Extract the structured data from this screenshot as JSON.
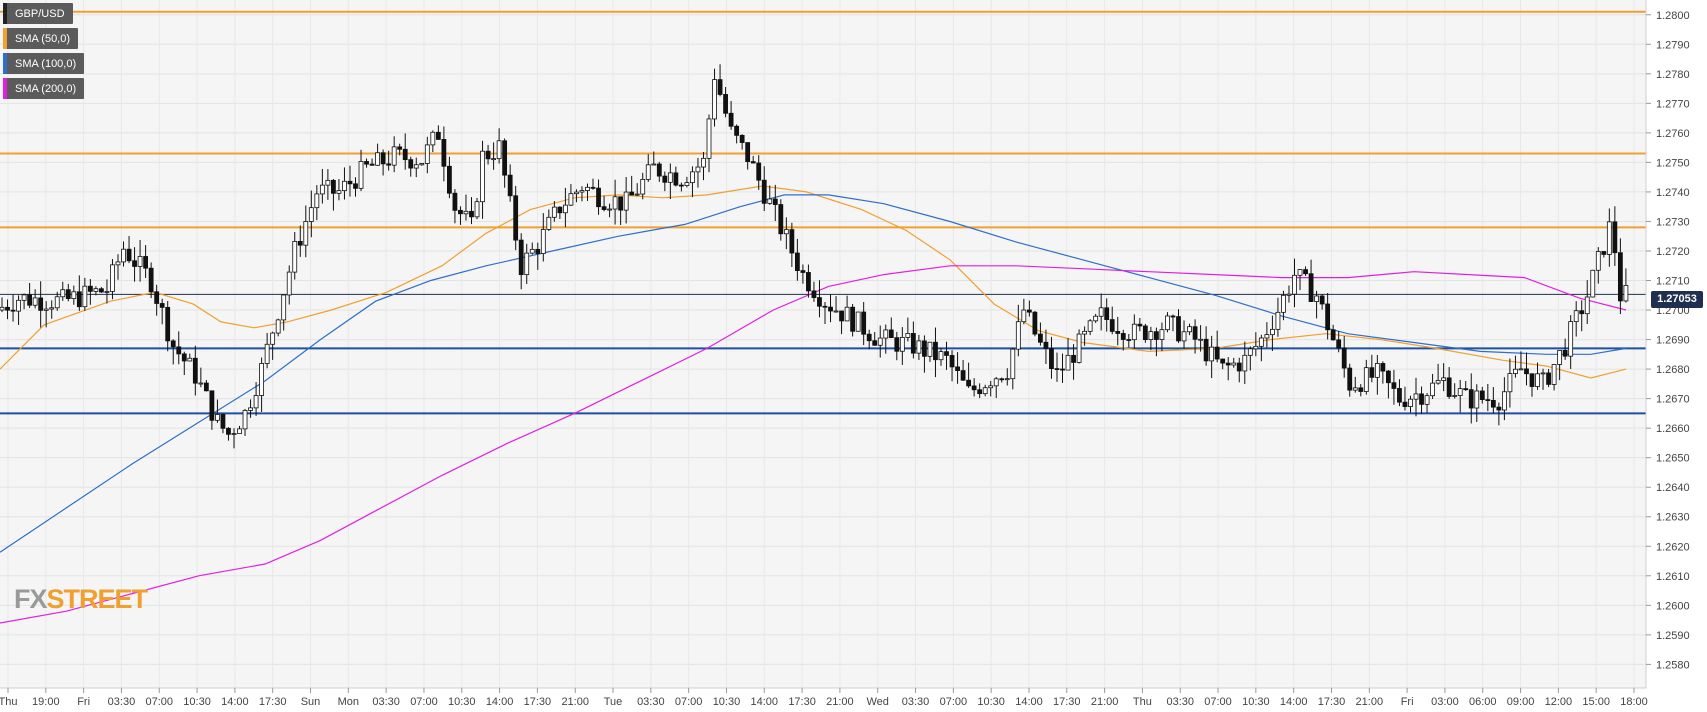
{
  "legend": [
    {
      "label": "GBP/USD",
      "color": "#222222"
    },
    {
      "label": "SMA (50,0)",
      "color": "#f0a030"
    },
    {
      "label": "SMA (100,0)",
      "color": "#2d6fc9"
    },
    {
      "label": "SMA (200,0)",
      "color": "#e020e0"
    }
  ],
  "logo": {
    "part1": "FX",
    "part2": "STREET"
  },
  "last_price": "1.27053",
  "chart_data": {
    "type": "candlestick",
    "symbol": "GBP/USD",
    "ylim": [
      1.2572,
      1.2805
    ],
    "y_ticks": [
      "1.2580",
      "1.2590",
      "1.2600",
      "1.2610",
      "1.2620",
      "1.2630",
      "1.2640",
      "1.2650",
      "1.2660",
      "1.2670",
      "1.2680",
      "1.2690",
      "1.2700",
      "1.2710",
      "1.2720",
      "1.2730",
      "1.2740",
      "1.2750",
      "1.2760",
      "1.2770",
      "1.2780",
      "1.2790",
      "1.2800"
    ],
    "x_ticks": [
      "Thu",
      "19:00",
      "Fri",
      "03:30",
      "07:00",
      "10:30",
      "14:00",
      "17:30",
      "Sun",
      "Mon",
      "03:30",
      "07:00",
      "10:30",
      "14:00",
      "17:30",
      "21:00",
      "Tue",
      "03:30",
      "07:00",
      "10:30",
      "14:00",
      "17:30",
      "21:00",
      "Wed",
      "03:30",
      "07:00",
      "10:30",
      "14:00",
      "17:30",
      "21:00",
      "Thu",
      "03:30",
      "07:00",
      "10:30",
      "14:00",
      "17:30",
      "21:00",
      "Fri",
      "03:00",
      "06:00",
      "09:00",
      "12:00",
      "15:00",
      "18:00"
    ],
    "grid": true,
    "horizontal_levels": [
      {
        "value": 1.2801,
        "color": "#f0a030"
      },
      {
        "value": 1.2753,
        "color": "#f0a030"
      },
      {
        "value": 1.2728,
        "color": "#f0a030"
      },
      {
        "value": 1.2687,
        "color": "#1f4fa0"
      },
      {
        "value": 1.2665,
        "color": "#1f4fa0"
      },
      {
        "value": 1.27053,
        "color": "#1f2f50"
      }
    ],
    "price_path": [
      [
        0,
        1.27
      ],
      [
        20,
        1.2704
      ],
      [
        60,
        1.2703
      ],
      [
        100,
        1.2707
      ],
      [
        115,
        1.2721
      ],
      [
        140,
        1.271
      ],
      [
        160,
        1.2688
      ],
      [
        180,
        1.2678
      ],
      [
        200,
        1.2662
      ],
      [
        210,
        1.2658
      ],
      [
        225,
        1.2665
      ],
      [
        240,
        1.268
      ],
      [
        255,
        1.27
      ],
      [
        270,
        1.272
      ],
      [
        290,
        1.274
      ],
      [
        310,
        1.274
      ],
      [
        335,
        1.2748
      ],
      [
        360,
        1.2752
      ],
      [
        385,
        1.2751
      ],
      [
        400,
        1.276
      ],
      [
        415,
        1.2735
      ],
      [
        430,
        1.2728
      ],
      [
        440,
        1.2752
      ],
      [
        455,
        1.2755
      ],
      [
        465,
        1.2735
      ],
      [
        475,
        1.2715
      ],
      [
        490,
        1.2722
      ],
      [
        510,
        1.2735
      ],
      [
        530,
        1.2742
      ],
      [
        550,
        1.2738
      ],
      [
        570,
        1.2736
      ],
      [
        595,
        1.2748
      ],
      [
        620,
        1.2745
      ],
      [
        640,
        1.275
      ],
      [
        650,
        1.278
      ],
      [
        665,
        1.276
      ],
      [
        680,
        1.2752
      ],
      [
        695,
        1.274
      ],
      [
        710,
        1.2728
      ],
      [
        730,
        1.2712
      ],
      [
        750,
        1.2703
      ],
      [
        770,
        1.2698
      ],
      [
        800,
        1.269
      ],
      [
        830,
        1.2688
      ],
      [
        860,
        1.2683
      ],
      [
        880,
        1.2672
      ],
      [
        900,
        1.2677
      ],
      [
        915,
        1.268
      ],
      [
        930,
        1.27
      ],
      [
        945,
        1.2688
      ],
      [
        960,
        1.2678
      ],
      [
        980,
        1.2688
      ],
      [
        1000,
        1.2698
      ],
      [
        1030,
        1.2692
      ],
      [
        1060,
        1.2695
      ],
      [
        1085,
        1.269
      ],
      [
        1110,
        1.268
      ],
      [
        1130,
        1.2683
      ],
      [
        1145,
        1.269
      ],
      [
        1160,
        1.27
      ],
      [
        1175,
        1.2712
      ],
      [
        1195,
        1.2705
      ],
      [
        1210,
        1.269
      ],
      [
        1225,
        1.2675
      ],
      [
        1250,
        1.2678
      ],
      [
        1270,
        1.267
      ],
      [
        1290,
        1.2672
      ],
      [
        1310,
        1.2676
      ],
      [
        1330,
        1.267
      ],
      [
        1360,
        1.267
      ],
      [
        1380,
        1.268
      ],
      [
        1400,
        1.2675
      ],
      [
        1420,
        1.2688
      ],
      [
        1440,
        1.2705
      ],
      [
        1455,
        1.2722
      ],
      [
        1462,
        1.273
      ],
      [
        1470,
        1.2705
      ]
    ],
    "sma50": [
      [
        0,
        1.268
      ],
      [
        40,
        1.2695
      ],
      [
        100,
        1.2703
      ],
      [
        140,
        1.2706
      ],
      [
        175,
        1.2702
      ],
      [
        200,
        1.2696
      ],
      [
        230,
        1.2694
      ],
      [
        260,
        1.2696
      ],
      [
        300,
        1.27
      ],
      [
        350,
        1.2706
      ],
      [
        400,
        1.2715
      ],
      [
        440,
        1.2726
      ],
      [
        480,
        1.2734
      ],
      [
        520,
        1.2738
      ],
      [
        560,
        1.2739
      ],
      [
        600,
        1.2738
      ],
      [
        640,
        1.2739
      ],
      [
        690,
        1.2742
      ],
      [
        730,
        1.274
      ],
      [
        780,
        1.2734
      ],
      [
        820,
        1.2727
      ],
      [
        860,
        1.2717
      ],
      [
        900,
        1.2702
      ],
      [
        940,
        1.2693
      ],
      [
        980,
        1.2689
      ],
      [
        1040,
        1.2686
      ],
      [
        1100,
        1.2687
      ],
      [
        1150,
        1.269
      ],
      [
        1200,
        1.2692
      ],
      [
        1250,
        1.269
      ],
      [
        1300,
        1.2687
      ],
      [
        1360,
        1.2683
      ],
      [
        1400,
        1.2681
      ],
      [
        1440,
        1.2677
      ],
      [
        1472,
        1.268
      ]
    ],
    "sma100": [
      [
        0,
        1.2618
      ],
      [
        60,
        1.2633
      ],
      [
        120,
        1.2648
      ],
      [
        180,
        1.2662
      ],
      [
        240,
        1.2676
      ],
      [
        290,
        1.269
      ],
      [
        340,
        1.2703
      ],
      [
        390,
        1.271
      ],
      [
        440,
        1.2715
      ],
      [
        500,
        1.272
      ],
      [
        560,
        1.2725
      ],
      [
        620,
        1.2729
      ],
      [
        670,
        1.2735
      ],
      [
        710,
        1.2739
      ],
      [
        750,
        1.2739
      ],
      [
        800,
        1.2736
      ],
      [
        860,
        1.273
      ],
      [
        920,
        1.2723
      ],
      [
        980,
        1.2717
      ],
      [
        1040,
        1.2711
      ],
      [
        1100,
        1.2705
      ],
      [
        1160,
        1.2698
      ],
      [
        1220,
        1.2692
      ],
      [
        1280,
        1.2689
      ],
      [
        1340,
        1.2686
      ],
      [
        1400,
        1.2685
      ],
      [
        1440,
        1.2685
      ],
      [
        1472,
        1.2687
      ]
    ],
    "sma200": [
      [
        0,
        1.2594
      ],
      [
        60,
        1.2598
      ],
      [
        120,
        1.2604
      ],
      [
        180,
        1.261
      ],
      [
        240,
        1.2614
      ],
      [
        290,
        1.2622
      ],
      [
        340,
        1.2632
      ],
      [
        400,
        1.2644
      ],
      [
        460,
        1.2655
      ],
      [
        520,
        1.2665
      ],
      [
        580,
        1.2676
      ],
      [
        640,
        1.2687
      ],
      [
        700,
        1.27
      ],
      [
        750,
        1.2708
      ],
      [
        800,
        1.2712
      ],
      [
        860,
        1.2715
      ],
      [
        920,
        1.2715
      ],
      [
        980,
        1.2714
      ],
      [
        1040,
        1.2713
      ],
      [
        1100,
        1.2712
      ],
      [
        1160,
        1.2711
      ],
      [
        1220,
        1.2711
      ],
      [
        1280,
        1.2713
      ],
      [
        1330,
        1.2712
      ],
      [
        1380,
        1.2711
      ],
      [
        1430,
        1.2704
      ],
      [
        1472,
        1.27
      ]
    ]
  }
}
